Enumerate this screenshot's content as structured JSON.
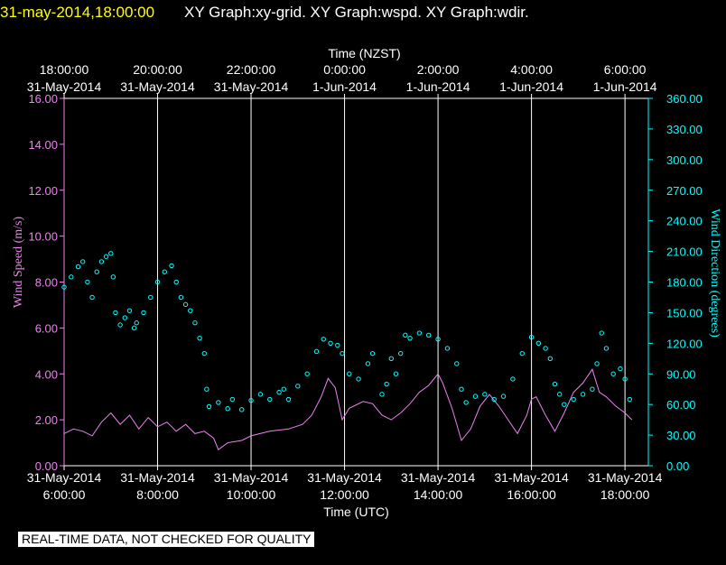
{
  "header": {
    "datetime": "31-may-2014,18:00:00",
    "graphs": "XY Graph:xy-grid.  XY Graph:wspd.  XY Graph:wdir."
  },
  "footer": {
    "quality_note": "REAL-TIME DATA, NOT CHECKED FOR QUALITY"
  },
  "chart_data": {
    "type": "line",
    "title": "",
    "x_range_hours_utc": [
      6,
      18.5
    ],
    "xlabel_bottom": "Time (UTC)",
    "xlabel_top": "Time (NZST)",
    "bottom_ticks": [
      {
        "x": 6,
        "line1": "31-May-2014",
        "line2": "6:00:00"
      },
      {
        "x": 8,
        "line1": "31-May-2014",
        "line2": "8:00:00"
      },
      {
        "x": 10,
        "line1": "31-May-2014",
        "line2": "10:00:00"
      },
      {
        "x": 12,
        "line1": "31-May-2014",
        "line2": "12:00:00"
      },
      {
        "x": 14,
        "line1": "31-May-2014",
        "line2": "14:00:00"
      },
      {
        "x": 16,
        "line1": "31-May-2014",
        "line2": "16:00:00"
      },
      {
        "x": 18,
        "line1": "31-May-2014",
        "line2": "18:00:00"
      }
    ],
    "top_ticks": [
      {
        "x": 6,
        "line1": "18:00:00",
        "line2": "31-May-2014"
      },
      {
        "x": 8,
        "line1": "20:00:00",
        "line2": "31-May-2014"
      },
      {
        "x": 10,
        "line1": "22:00:00",
        "line2": "31-May-2014"
      },
      {
        "x": 12,
        "line1": "0:00:00",
        "line2": "1-Jun-2014"
      },
      {
        "x": 14,
        "line1": "2:00:00",
        "line2": "1-Jun-2014"
      },
      {
        "x": 16,
        "line1": "4:00:00",
        "line2": "1-Jun-2014"
      },
      {
        "x": 18,
        "line1": "6:00:00",
        "line2": "1-Jun-2014"
      }
    ],
    "y_left": {
      "label": "Wind Speed (m/s)",
      "ylim": [
        0,
        16
      ],
      "ticks": [
        "0.00",
        "2.00",
        "4.00",
        "6.00",
        "8.00",
        "10.00",
        "12.00",
        "14.00",
        "16.00"
      ],
      "color": "#ee82ee"
    },
    "y_right": {
      "label": "Wind Direction (degrees)",
      "ylim": [
        0,
        360
      ],
      "ticks": [
        "0.00",
        "30.00",
        "60.00",
        "90.00",
        "120.00",
        "150.00",
        "180.00",
        "210.00",
        "240.00",
        "270.00",
        "300.00",
        "330.00",
        "360.00"
      ],
      "color": "#00ffff"
    },
    "grid_vertical_at": [
      8,
      10,
      12,
      14,
      16,
      18
    ],
    "series": [
      {
        "role": "wind-speed",
        "style": "line",
        "color": "#ee82ee",
        "points": [
          [
            6.0,
            1.4
          ],
          [
            6.2,
            1.6
          ],
          [
            6.4,
            1.5
          ],
          [
            6.6,
            1.3
          ],
          [
            6.8,
            1.9
          ],
          [
            7.0,
            2.3
          ],
          [
            7.2,
            1.8
          ],
          [
            7.4,
            2.2
          ],
          [
            7.6,
            1.6
          ],
          [
            7.8,
            2.1
          ],
          [
            8.0,
            1.7
          ],
          [
            8.2,
            1.9
          ],
          [
            8.4,
            1.5
          ],
          [
            8.6,
            1.8
          ],
          [
            8.8,
            1.4
          ],
          [
            9.0,
            1.5
          ],
          [
            9.2,
            1.2
          ],
          [
            9.3,
            0.7
          ],
          [
            9.5,
            1.0
          ],
          [
            9.8,
            1.1
          ],
          [
            10.0,
            1.3
          ],
          [
            10.4,
            1.5
          ],
          [
            10.8,
            1.6
          ],
          [
            11.1,
            1.8
          ],
          [
            11.3,
            2.2
          ],
          [
            11.5,
            3.0
          ],
          [
            11.65,
            3.8
          ],
          [
            11.8,
            3.4
          ],
          [
            11.95,
            2.0
          ],
          [
            12.1,
            2.5
          ],
          [
            12.4,
            2.8
          ],
          [
            12.6,
            2.7
          ],
          [
            12.8,
            2.2
          ],
          [
            13.0,
            2.0
          ],
          [
            13.2,
            2.3
          ],
          [
            13.4,
            2.7
          ],
          [
            13.6,
            3.2
          ],
          [
            13.8,
            3.5
          ],
          [
            14.0,
            4.0
          ],
          [
            14.1,
            3.6
          ],
          [
            14.3,
            2.5
          ],
          [
            14.5,
            1.1
          ],
          [
            14.7,
            1.6
          ],
          [
            14.9,
            2.6
          ],
          [
            15.1,
            3.1
          ],
          [
            15.3,
            2.6
          ],
          [
            15.5,
            2.0
          ],
          [
            15.7,
            1.4
          ],
          [
            15.9,
            2.2
          ],
          [
            16.0,
            2.9
          ],
          [
            16.1,
            3.0
          ],
          [
            16.3,
            2.2
          ],
          [
            16.5,
            1.5
          ],
          [
            16.7,
            2.3
          ],
          [
            16.9,
            3.2
          ],
          [
            17.1,
            3.6
          ],
          [
            17.3,
            4.2
          ],
          [
            17.45,
            3.2
          ],
          [
            17.6,
            3.0
          ],
          [
            17.8,
            2.6
          ],
          [
            18.0,
            2.3
          ],
          [
            18.15,
            2.0
          ]
        ]
      },
      {
        "role": "wind-direction",
        "style": "markers",
        "color": "#00ffff",
        "points": [
          [
            6.0,
            175
          ],
          [
            6.15,
            185
          ],
          [
            6.3,
            195
          ],
          [
            6.4,
            200
          ],
          [
            6.5,
            180
          ],
          [
            6.6,
            165
          ],
          [
            6.7,
            190
          ],
          [
            6.8,
            200
          ],
          [
            6.9,
            205
          ],
          [
            7.0,
            208
          ],
          [
            7.05,
            185
          ],
          [
            7.1,
            150
          ],
          [
            7.2,
            138
          ],
          [
            7.3,
            145
          ],
          [
            7.4,
            152
          ],
          [
            7.5,
            135
          ],
          [
            7.55,
            140
          ],
          [
            7.7,
            150
          ],
          [
            7.85,
            165
          ],
          [
            8.0,
            180
          ],
          [
            8.15,
            190
          ],
          [
            8.3,
            196
          ],
          [
            8.4,
            180
          ],
          [
            8.5,
            165
          ],
          [
            8.6,
            158
          ],
          [
            8.7,
            152
          ],
          [
            8.8,
            140
          ],
          [
            8.9,
            125
          ],
          [
            9.0,
            110
          ],
          [
            9.05,
            75
          ],
          [
            9.1,
            58
          ],
          [
            9.3,
            62
          ],
          [
            9.5,
            56
          ],
          [
            9.6,
            65
          ],
          [
            9.8,
            55
          ],
          [
            10.0,
            64
          ],
          [
            10.2,
            70
          ],
          [
            10.4,
            65
          ],
          [
            10.6,
            72
          ],
          [
            10.7,
            75
          ],
          [
            10.8,
            65
          ],
          [
            11.0,
            78
          ],
          [
            11.2,
            90
          ],
          [
            11.4,
            112
          ],
          [
            11.55,
            124
          ],
          [
            11.7,
            120
          ],
          [
            11.85,
            118
          ],
          [
            11.95,
            110
          ],
          [
            12.1,
            90
          ],
          [
            12.3,
            85
          ],
          [
            12.5,
            100
          ],
          [
            12.6,
            110
          ],
          [
            12.8,
            70
          ],
          [
            12.9,
            80
          ],
          [
            13.0,
            105
          ],
          [
            13.1,
            90
          ],
          [
            13.2,
            110
          ],
          [
            13.3,
            128
          ],
          [
            13.4,
            125
          ],
          [
            13.6,
            130
          ],
          [
            13.8,
            128
          ],
          [
            14.0,
            124
          ],
          [
            14.2,
            115
          ],
          [
            14.4,
            100
          ],
          [
            14.5,
            75
          ],
          [
            14.6,
            62
          ],
          [
            14.8,
            68
          ],
          [
            15.0,
            70
          ],
          [
            15.2,
            65
          ],
          [
            15.4,
            68
          ],
          [
            15.6,
            85
          ],
          [
            15.8,
            110
          ],
          [
            16.0,
            126
          ],
          [
            16.15,
            120
          ],
          [
            16.3,
            115
          ],
          [
            16.4,
            105
          ],
          [
            16.5,
            80
          ],
          [
            16.6,
            70
          ],
          [
            16.7,
            60
          ],
          [
            16.9,
            65
          ],
          [
            17.1,
            70
          ],
          [
            17.3,
            75
          ],
          [
            17.4,
            100
          ],
          [
            17.5,
            130
          ],
          [
            17.6,
            115
          ],
          [
            17.75,
            90
          ],
          [
            17.9,
            95
          ],
          [
            18.0,
            85
          ],
          [
            18.1,
            65
          ]
        ]
      }
    ]
  }
}
